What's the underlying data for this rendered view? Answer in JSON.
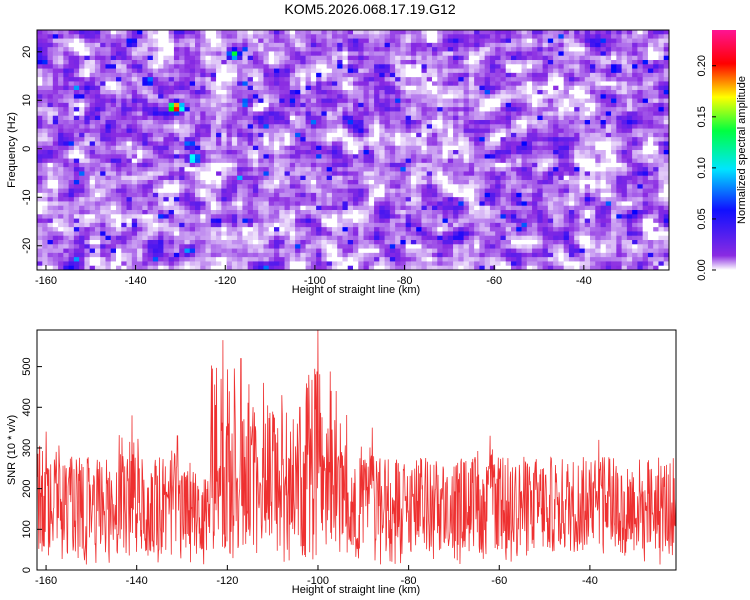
{
  "title": "KOM5.2026.068.17.19.G12",
  "chart_data": [
    {
      "type": "heatmap",
      "xlabel": "Height of straight line (km)",
      "ylabel": "Frequency (Hz)",
      "xlim": [
        -162,
        -21
      ],
      "ylim": [
        -25,
        24.5
      ],
      "xticks": [
        -160,
        -140,
        -120,
        -100,
        -80,
        -60,
        -40
      ],
      "yticks": [
        -20,
        -10,
        0,
        10,
        20
      ],
      "colorbar": {
        "label": "Normalized spectral amplitude",
        "range": [
          0.0,
          0.235
        ],
        "ticks": [
          "0.00",
          "0.05",
          "0.10",
          "0.15",
          "0.20"
        ],
        "colormap": [
          "#ffffff",
          "#8a2be2",
          "#0000ff",
          "#00ffff",
          "#00ff00",
          "#ffff00",
          "#ff0000",
          "#ff1493"
        ]
      },
      "hotspots": [
        {
          "x": -131,
          "y": 8.5,
          "value": 0.22
        },
        {
          "x": -118,
          "y": 19.5,
          "value": 0.13
        },
        {
          "x": -137,
          "y": 14,
          "value": 0.09
        },
        {
          "x": -127,
          "y": -2,
          "value": 0.12
        },
        {
          "x": -128,
          "y": 1,
          "value": 0.09
        },
        {
          "x": -141,
          "y": 22,
          "value": 0.08
        },
        {
          "x": -33,
          "y": 16.5,
          "value": 0.08
        },
        {
          "x": -122,
          "y": -15,
          "value": 0.07
        },
        {
          "x": -44,
          "y": -18,
          "value": 0.06
        }
      ]
    },
    {
      "type": "line",
      "xlabel": "Height of straight line (km)",
      "ylabel": "SNR (10 * v/v)",
      "xlim": [
        -162,
        -21
      ],
      "ylim": [
        0,
        590
      ],
      "xticks": [
        -160,
        -140,
        -120,
        -100,
        -80,
        -60,
        -40
      ],
      "yticks": [
        0,
        100,
        200,
        300,
        400,
        500
      ],
      "color": "#ee3030",
      "baseline_range": [
        40,
        280
      ],
      "peaks": [
        {
          "x": -160,
          "y": 340
        },
        {
          "x": -141,
          "y": 380
        },
        {
          "x": -131,
          "y": 330
        },
        {
          "x": -121,
          "y": 565
        },
        {
          "x": -117,
          "y": 520
        },
        {
          "x": -112,
          "y": 460
        },
        {
          "x": -108,
          "y": 430
        },
        {
          "x": -104,
          "y": 400
        },
        {
          "x": -100,
          "y": 590
        },
        {
          "x": -96,
          "y": 440
        },
        {
          "x": -88,
          "y": 350
        },
        {
          "x": -62,
          "y": 330
        },
        {
          "x": -38,
          "y": 320
        }
      ]
    }
  ]
}
